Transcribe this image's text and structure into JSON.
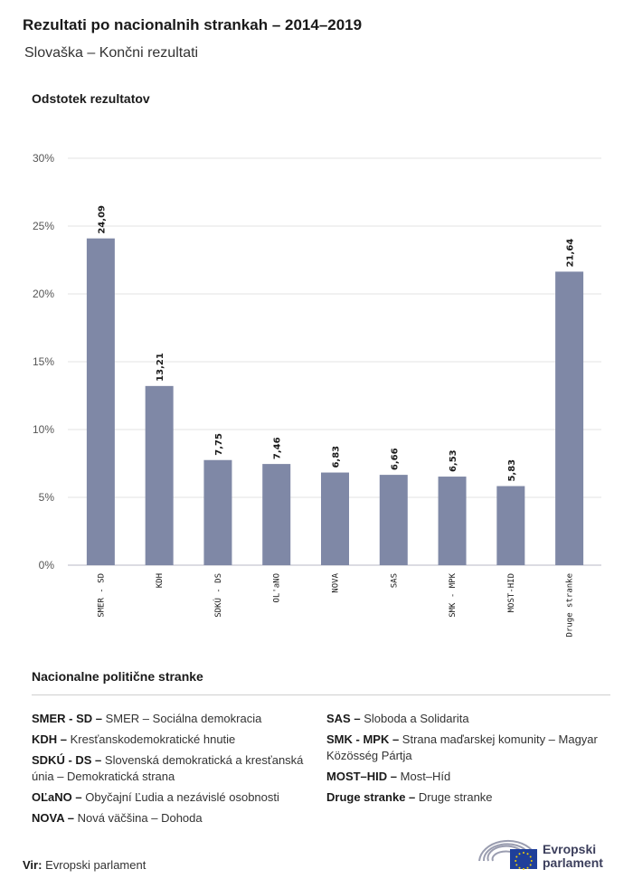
{
  "header": {
    "title": "Rezultati po nacionalnih strankah – 2014–2019",
    "subtitle": "Slovaška – Končni rezultati"
  },
  "chart_data": {
    "type": "bar",
    "ylabel": "Odstotek rezultatov",
    "ylim": [
      0,
      30
    ],
    "yticks": [
      "0%",
      "5%",
      "10%",
      "15%",
      "20%",
      "25%",
      "30%"
    ],
    "ytick_values": [
      0,
      5,
      10,
      15,
      20,
      25,
      30
    ],
    "grid": true,
    "bar_color": "#7f88a6",
    "categories": [
      "SMER - SD",
      "KDH",
      "SDKÚ - DS",
      "OL'aNO",
      "NOVA",
      "SAS",
      "SMK - MPK",
      "MOST-HID",
      "Druge stranke"
    ],
    "values": [
      24.09,
      13.21,
      7.75,
      7.46,
      6.83,
      6.66,
      6.53,
      5.83,
      21.64
    ],
    "value_labels": [
      "24,09",
      "13,21",
      "7,75",
      "7,46",
      "6,83",
      "6,66",
      "6,53",
      "5,83",
      "21,64"
    ]
  },
  "legend": {
    "title": "Nacionalne politične stranke",
    "left": [
      {
        "abbr": "SMER - SD –",
        "desc": "SMER – Sociálna demokracia"
      },
      {
        "abbr": "KDH –",
        "desc": "Kresťanskodemokratické hnutie"
      },
      {
        "abbr": "SDKÚ - DS –",
        "desc": "Slovenská demokratická a kresťanská únia – Demokratická strana"
      },
      {
        "abbr": "OĽaNO –",
        "desc": "Obyčajní Ľudia a nezávislé osobnosti"
      },
      {
        "abbr": "NOVA –",
        "desc": "Nová väčšina – Dohoda"
      }
    ],
    "right": [
      {
        "abbr": "SAS –",
        "desc": "Sloboda a Solidarita"
      },
      {
        "abbr": "SMK - MPK –",
        "desc": "Strana maďarskej komunity – Magyar Közösség Pártja"
      },
      {
        "abbr": "MOST–HID –",
        "desc": "Most–Híd"
      },
      {
        "abbr": "Druge stranke –",
        "desc": "Druge stranke"
      }
    ]
  },
  "footer": {
    "source_label": "Vir:",
    "source_text": "Evropski parlament",
    "logo_line1": "Evropski",
    "logo_line2": "parlament"
  }
}
